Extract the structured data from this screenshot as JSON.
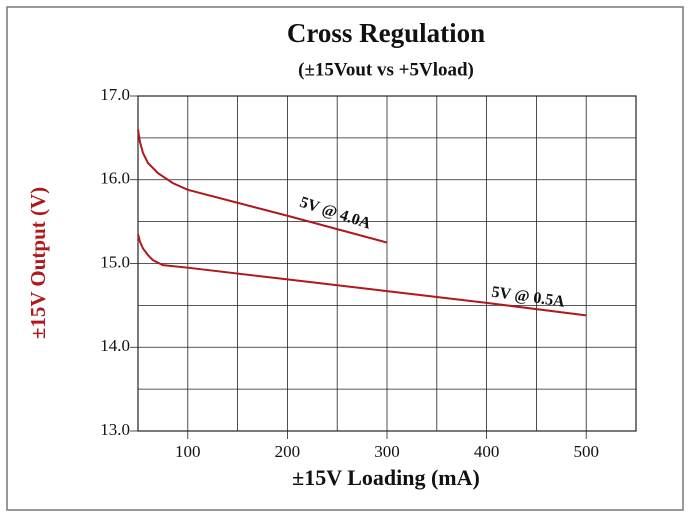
{
  "chart_data": {
    "type": "line",
    "title": "Cross Regulation",
    "subtitle": "(±15Vout vs +5Vload)",
    "xlabel": "±15V Loading (mA)",
    "ylabel": "±15V Output (V)",
    "xlim": [
      50,
      550
    ],
    "ylim": [
      13,
      17
    ],
    "xticks": [
      100,
      200,
      300,
      400,
      500
    ],
    "yticks": [
      {
        "value": 13,
        "label": "13.0"
      },
      {
        "value": 14,
        "label": "14.0"
      },
      {
        "value": 15,
        "label": "15.0"
      },
      {
        "value": 16,
        "label": "16.0"
      },
      {
        "value": 17,
        "label": "17.0"
      }
    ],
    "xgrid": [
      100,
      150,
      200,
      250,
      300,
      350,
      400,
      450,
      500
    ],
    "ygrid": [
      13.5,
      14,
      14.5,
      15,
      15.5,
      16,
      16.5
    ],
    "grid": true,
    "series": [
      {
        "name": "5V @ 4.0A",
        "color": "#b0181c",
        "x": [
          50,
          52,
          55,
          60,
          70,
          85,
          100,
          200,
          300
        ],
        "values": [
          16.6,
          16.45,
          16.32,
          16.2,
          16.08,
          15.96,
          15.88,
          15.57,
          15.25
        ]
      },
      {
        "name": "5V @ 0.5A",
        "color": "#b0181c",
        "x": [
          50,
          52,
          55,
          60,
          65,
          75,
          100,
          200,
          300,
          400,
          500
        ],
        "values": [
          15.35,
          15.26,
          15.18,
          15.1,
          15.04,
          14.98,
          14.95,
          14.81,
          14.67,
          14.53,
          14.38
        ]
      }
    ]
  }
}
